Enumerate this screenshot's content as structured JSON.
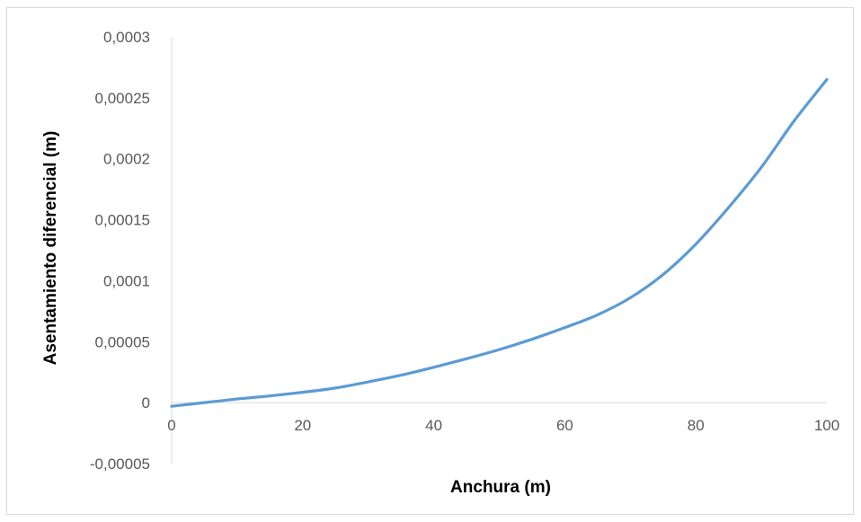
{
  "chart_data": {
    "type": "line",
    "title": "",
    "xlabel": "Anchura (m)",
    "ylabel": "Asentamiento diferencial (m)",
    "xlim": [
      0,
      100
    ],
    "ylim": [
      -5e-05,
      0.0003
    ],
    "x_ticks": [
      "0",
      "20",
      "40",
      "60",
      "80",
      "100"
    ],
    "x_tick_values": [
      0,
      20,
      40,
      60,
      80,
      100
    ],
    "y_ticks": [
      "0,0003",
      "0,00025",
      "0,0002",
      "0,00015",
      "0,0001",
      "0,00005",
      "0",
      "-0,00005"
    ],
    "y_tick_values": [
      0.0003,
      0.00025,
      0.0002,
      0.00015,
      0.0001,
      5e-05,
      0,
      -5e-05
    ],
    "grid": false,
    "legend": "none",
    "series": [
      {
        "color": "#5b9bd5",
        "x": [
          0,
          5,
          10,
          15,
          20,
          25,
          30,
          35,
          40,
          45,
          50,
          55,
          60,
          65,
          70,
          75,
          80,
          85,
          90,
          95,
          100
        ],
        "y": [
          -3e-06,
          0.0,
          3e-06,
          5.5e-06,
          8.5e-06,
          1.2e-05,
          1.7e-05,
          2.25e-05,
          2.9e-05,
          3.6e-05,
          4.35e-05,
          5.2e-05,
          6.15e-05,
          7.2e-05,
          8.6e-05,
          0.000105,
          0.00013,
          0.00016,
          0.000193,
          0.000231,
          0.000265
        ]
      }
    ]
  }
}
